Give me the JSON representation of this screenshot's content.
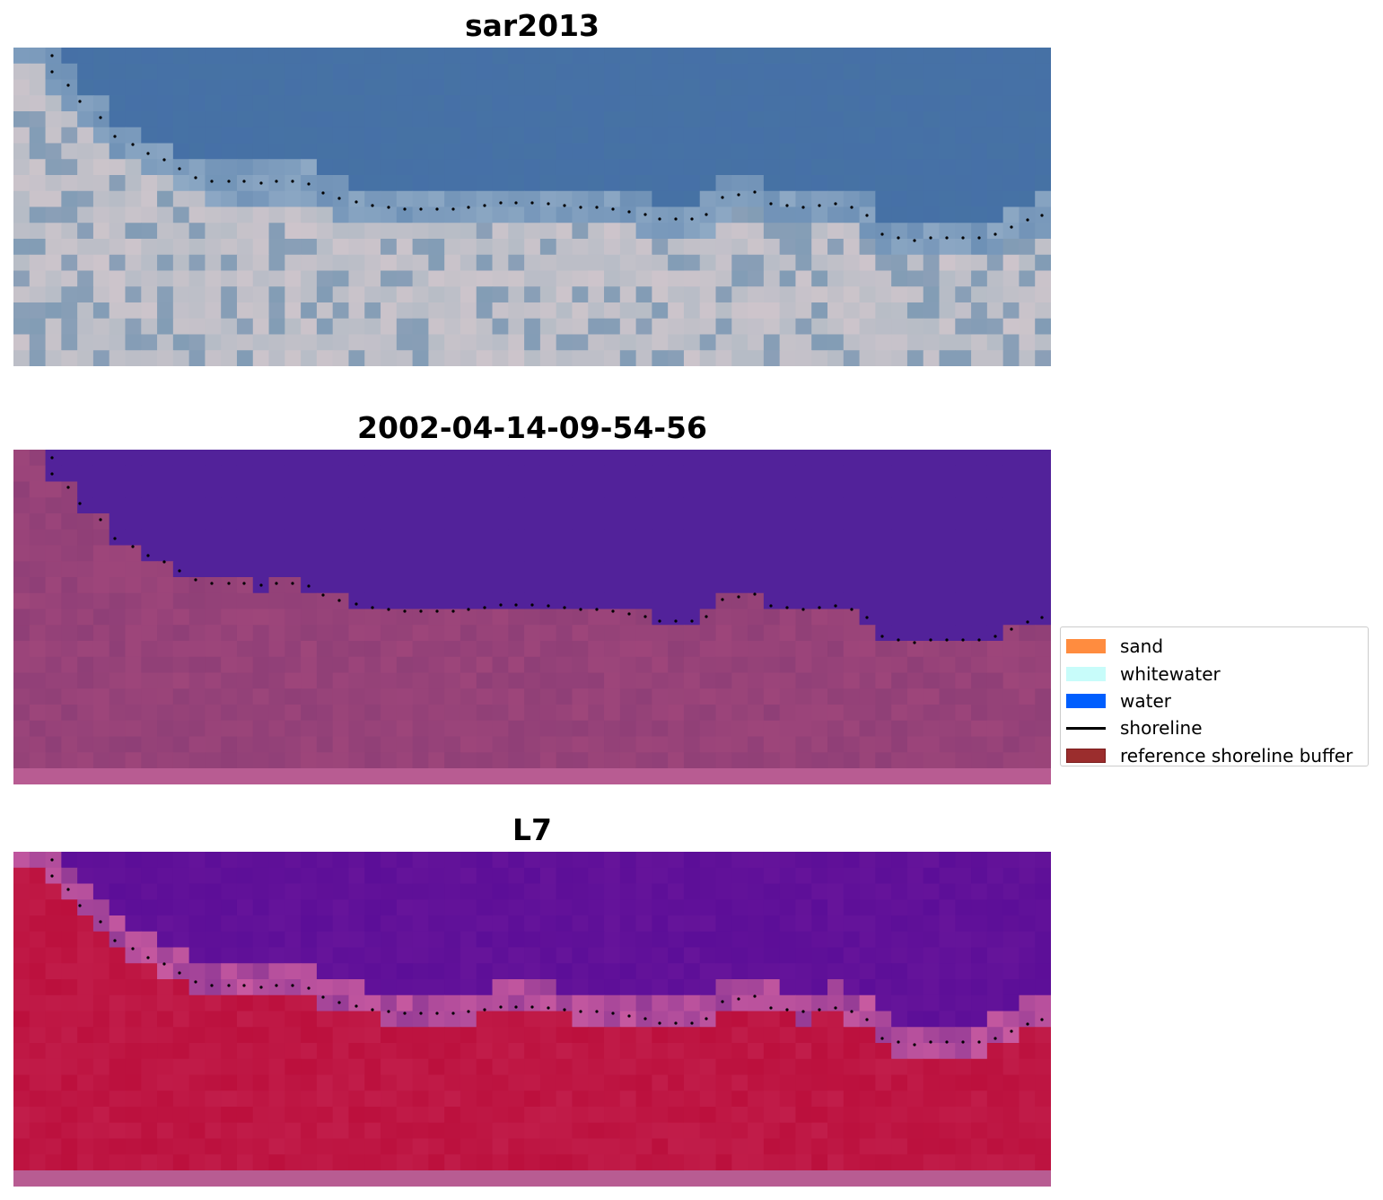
{
  "panels": [
    {
      "title": "sar2013",
      "style": "rgb"
    },
    {
      "title": "2002-04-14-09-54-56",
      "style": "classified"
    },
    {
      "title": "L7",
      "style": "ndwi"
    }
  ],
  "legend": {
    "items": [
      {
        "label": "sand",
        "color": "#ff8c3f",
        "kind": "patch"
      },
      {
        "label": "whitewater",
        "color": "#c8fcfa",
        "kind": "patch"
      },
      {
        "label": "water",
        "color": "#005efe",
        "kind": "patch"
      },
      {
        "label": "shoreline",
        "color": "#000000",
        "kind": "line"
      },
      {
        "label": "reference shoreline buffer",
        "color": "#9b2d2d",
        "kind": "patch"
      }
    ]
  },
  "colors": {
    "water_class": "#52229a",
    "land_class": "#8f3f77",
    "ndwi_water": "#66149a",
    "ndwi_land": "#c11d4a",
    "rgb_water": "#4672a4",
    "rgb_land": "#b6bcc6"
  }
}
